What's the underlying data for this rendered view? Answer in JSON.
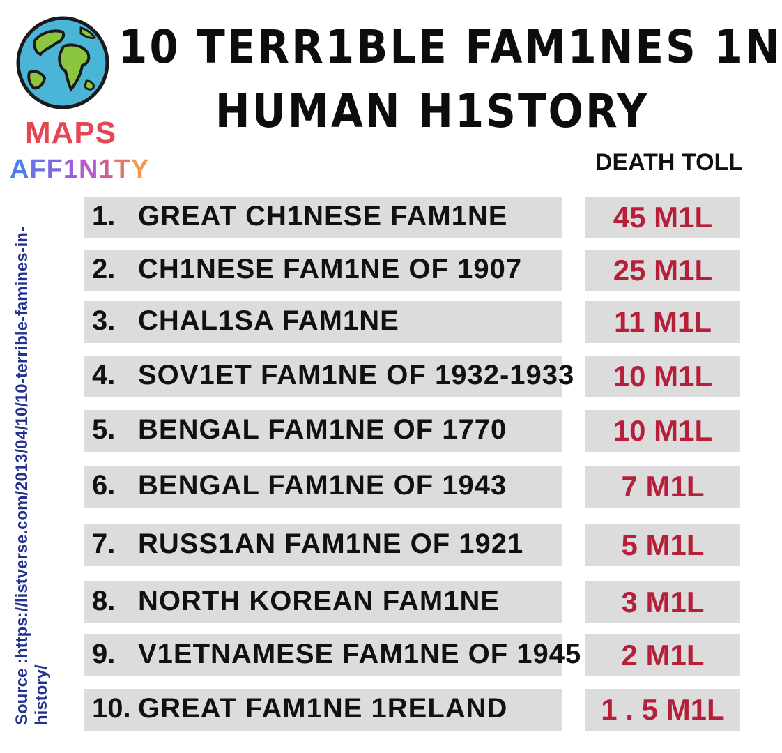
{
  "brand": {
    "line1": "MAPS",
    "line2_letters": [
      "A",
      "F",
      "F",
      "1",
      "N",
      "1",
      "T",
      "Y"
    ],
    "line2_colors": [
      "#4f7ee8",
      "#6a72e6",
      "#7f67e0",
      "#9a5fd8",
      "#b45ccc",
      "#cf5f9a",
      "#e27a63",
      "#ef9a4c"
    ],
    "logo_icon": "globe-icon"
  },
  "title": {
    "line1": "10 TERR1BLE FAM1NES 1N",
    "line2": "HUMAN H1STORY"
  },
  "column_header": "DEATH TOLL",
  "source": "Source :https://listverse.com/2013/04/10/10-terrible-famines-in-history/",
  "colors": {
    "row_background": "#dcdcdc",
    "death_toll_text": "#b51f3a",
    "source_text": "#25318f"
  },
  "famines": [
    {
      "rank": "1.",
      "name": "GREAT CH1NESE FAM1NE",
      "toll": "45 M1L"
    },
    {
      "rank": "2.",
      "name": "CH1NESE FAM1NE OF 1907",
      "toll": "25 M1L"
    },
    {
      "rank": "3.",
      "name": "CHAL1SA FAM1NE",
      "toll": "11 M1L"
    },
    {
      "rank": "4.",
      "name": "SOV1ET FAM1NE OF 1932-1933",
      "toll": "10 M1L"
    },
    {
      "rank": "5.",
      "name": "BENGAL FAM1NE OF 1770",
      "toll": "10 M1L"
    },
    {
      "rank": "6.",
      "name": "BENGAL FAM1NE OF 1943",
      "toll": "7 M1L"
    },
    {
      "rank": "7.",
      "name": "RUSS1AN FAM1NE OF 1921",
      "toll": "5 M1L"
    },
    {
      "rank": "8.",
      "name": "NORTH KOREAN FAM1NE",
      "toll": "3 M1L"
    },
    {
      "rank": "9.",
      "name": "V1ETNAMESE FAM1NE OF 1945",
      "toll": "2 M1L"
    },
    {
      "rank": "10.",
      "name": "GREAT FAM1NE 1RELAND",
      "toll": "1 . 5 M1L"
    }
  ]
}
